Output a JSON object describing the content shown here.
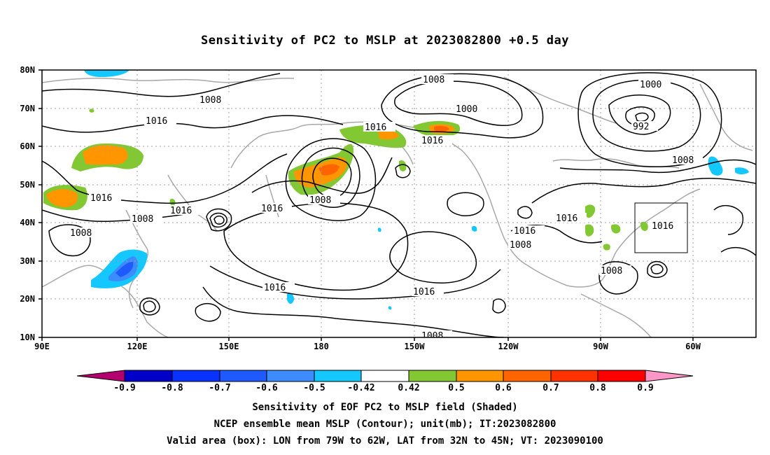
{
  "title": "Sensitivity of PC2 to MSLP at 2023082800 +0.5 day",
  "map": {
    "lat_ticks": [
      "80N",
      "70N",
      "60N",
      "50N",
      "40N",
      "30N",
      "20N",
      "10N"
    ],
    "lon_ticks": [
      "90E",
      "120E",
      "150E",
      "180",
      "150W",
      "120W",
      "90W",
      "60W"
    ],
    "grid": "dotted",
    "contour_labels": [
      "1008",
      "1000",
      "992",
      "1016"
    ],
    "valid_box": {
      "lon": [
        "79W",
        "62W"
      ],
      "lat": [
        "32N",
        "45N"
      ]
    }
  },
  "colorbar": {
    "labels": [
      "-0.9",
      "-0.8",
      "-0.7",
      "-0.6",
      "-0.5",
      "-0.42",
      "0.42",
      "0.5",
      "0.6",
      "0.7",
      "0.8",
      "0.9"
    ],
    "colors": [
      "#b4006e",
      "#0000c8",
      "#0a32ff",
      "#1e5aff",
      "#3c8cff",
      "#14c8ff",
      "#ffffff",
      "#82c832",
      "#ff9600",
      "#ff6400",
      "#ff3200",
      "#ff0000",
      "#ff96c8"
    ]
  },
  "footer": {
    "line1": "Sensitivity of EOF PC2 to MSLP field (Shaded)",
    "line2": "NCEP ensemble mean MSLP (Contour); unit(mb); IT:2023082800",
    "line3": "Valid area (box): LON from 79W to 62W, LAT from 32N to 45N; VT: 2023090100"
  }
}
